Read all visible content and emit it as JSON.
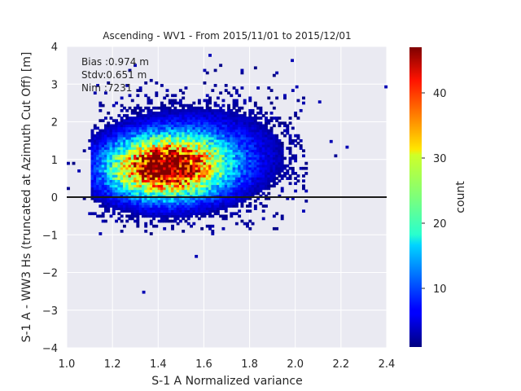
{
  "chart_data": {
    "type": "heatmap",
    "title": "Ascending - WV1 - From 2015/11/01 to 2015/12/01",
    "xlabel": "S-1 A Normalized variance",
    "ylabel": "S-1 A - WW3 Hs (truncated at Azimuth Cut Off) [m]",
    "xlim": [
      1.0,
      2.4
    ],
    "ylim": [
      -4,
      4
    ],
    "xticks": [
      "1.0",
      "1.2",
      "1.4",
      "1.6",
      "1.8",
      "2.0",
      "2.2",
      "2.4"
    ],
    "yticks": [
      "4",
      "3",
      "2",
      "1",
      "0",
      "−1",
      "−2",
      "−3",
      "−4"
    ],
    "grid": true,
    "reference_line_y": 0,
    "annotations": [
      "Bias :0.974 m",
      "Stdv:0.651 m",
      "Nim :7231"
    ],
    "colorbar": {
      "label": "count",
      "range": [
        1,
        47
      ],
      "ticks": [
        "10",
        "20",
        "30",
        "40"
      ],
      "colormap": "jet"
    },
    "distribution": {
      "description_values": {
        "center_x": 1.42,
        "center_y": 0.75,
        "peak_count": 45
      },
      "outliers": [
        [
          2.39,
          2.9
        ],
        [
          1.33,
          -2.55
        ],
        [
          1.56,
          -1.6
        ],
        [
          2.15,
          1.45
        ],
        [
          2.22,
          1.3
        ],
        [
          2.1,
          2.5
        ],
        [
          2.0,
          2.9
        ],
        [
          1.98,
          3.6
        ]
      ]
    }
  }
}
